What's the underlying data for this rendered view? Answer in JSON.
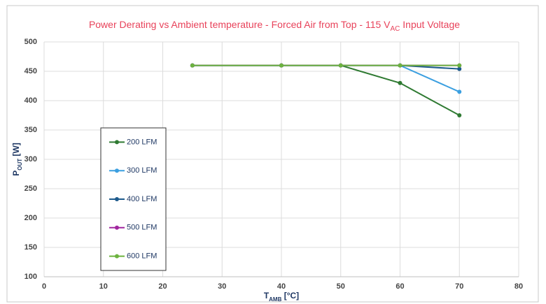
{
  "chart_data": {
    "type": "line",
    "title": [
      "Power Derating vs Ambient temperature - Forced Air from Top - 115 V",
      "AC",
      " Input Voltage"
    ],
    "x_label": [
      "T",
      "AMB",
      " [°C]"
    ],
    "y_label": [
      "P",
      "OUT",
      " [W]"
    ],
    "x": [
      25,
      40,
      50,
      60,
      70
    ],
    "series": [
      {
        "name": "200 LFM",
        "color": "#2f7a32",
        "values": [
          460,
          460,
          460,
          430,
          375
        ]
      },
      {
        "name": "300 LFM",
        "color": "#3b9fe0",
        "values": [
          460,
          460,
          460,
          460,
          415
        ]
      },
      {
        "name": "400 LFM",
        "color": "#1d5a8c",
        "values": [
          460,
          460,
          460,
          460,
          454
        ]
      },
      {
        "name": "500 LFM",
        "color": "#a1279f",
        "values": [
          460,
          460,
          460,
          460,
          460
        ]
      },
      {
        "name": "600 LFM",
        "color": "#6cb33f",
        "values": [
          460,
          460,
          460,
          460,
          460
        ]
      }
    ],
    "xlim": [
      0,
      80
    ],
    "xticks": [
      0,
      10,
      20,
      30,
      40,
      50,
      60,
      70,
      80
    ],
    "ylim": [
      100,
      500
    ],
    "yticks": [
      100,
      150,
      200,
      250,
      300,
      350,
      400,
      450,
      500
    ],
    "grid": true,
    "legend": "left"
  }
}
